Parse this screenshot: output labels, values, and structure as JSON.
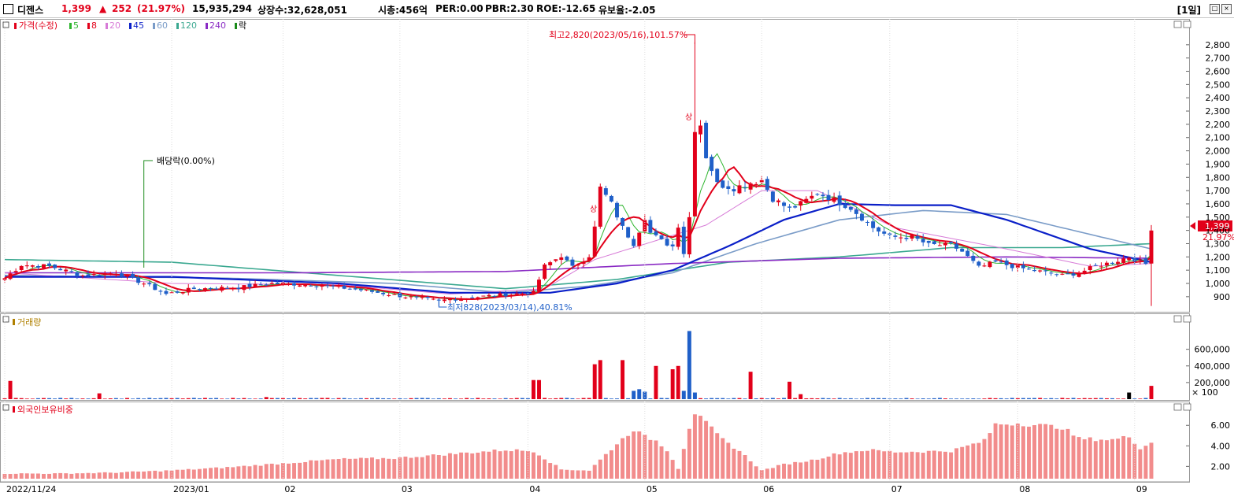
{
  "header": {
    "name": "디젠스",
    "price": "1,399",
    "change_arrow": "▲",
    "change": "252",
    "change_pct": "(21.97%)",
    "volume": "15,935,294",
    "listed_shares": "상장수:32,628,051",
    "market_cap": "시총:456억",
    "per": "PER:0.00",
    "pbr": "PBR:2.30",
    "roe": "ROE:-12.65",
    "float_ratio": "유보율:-2.05",
    "period": "[1일]"
  },
  "legend": {
    "price_label": "가격(수정)",
    "ma": [
      {
        "label": "5",
        "color": "#2db52d"
      },
      {
        "label": "8",
        "color": "#e2001a"
      },
      {
        "label": "20",
        "color": "#d77bd7"
      },
      {
        "label": "45",
        "color": "#0a1fc8"
      },
      {
        "label": "60",
        "color": "#7a9cc8"
      },
      {
        "label": "120",
        "color": "#3aa890"
      },
      {
        "label": "240",
        "color": "#8a2bc4"
      }
    ],
    "ex_label": "락"
  },
  "annotations": {
    "high": "최고2,820(2023/05/16),101.57%",
    "low": "최저828(2023/03/14),40.81%",
    "dividend": "배당락(0.00%)",
    "limit_up_1": "상",
    "limit_up_2": "상",
    "last_price": "1,399",
    "last_pct": "21.97%"
  },
  "panels": {
    "volume_title": "거래량",
    "foreign_title": "외국인보유비중",
    "volume_unit": "× 100"
  },
  "colors": {
    "up": "#e2001a",
    "down": "#1f5fc8",
    "volume_last_dark": "#000000",
    "foreign_bar": "#f28c8c"
  },
  "chart_data": [
    {
      "type": "candlestick",
      "title": "",
      "ylim": [
        810,
        2900
      ],
      "y_ticks": [
        "900",
        "1,000",
        "1,100",
        "1,200",
        "1,300",
        "1,400",
        "1,500",
        "1,600",
        "1,700",
        "1,800",
        "1,900",
        "2,000",
        "2,100",
        "2,200",
        "2,300",
        "2,400",
        "2,500",
        "2,600",
        "2,700",
        "2,800"
      ],
      "x_ticks": [
        "2022/11/24",
        "2023/01",
        "02",
        "03",
        "04",
        "05",
        "06",
        "07",
        "08",
        "09"
      ],
      "x_tick_index": [
        0,
        30,
        50,
        71,
        94,
        115,
        136,
        159,
        182,
        203
      ],
      "n_days": 207,
      "anchors_close": [
        [
          0,
          1040
        ],
        [
          3,
          1140
        ],
        [
          8,
          1130
        ],
        [
          14,
          1060
        ],
        [
          20,
          1080
        ],
        [
          25,
          1000
        ],
        [
          29,
          920
        ],
        [
          34,
          960
        ],
        [
          42,
          970
        ],
        [
          48,
          1000
        ],
        [
          56,
          990
        ],
        [
          64,
          950
        ],
        [
          72,
          900
        ],
        [
          78,
          870
        ],
        [
          80,
          880
        ],
        [
          88,
          910
        ],
        [
          95,
          930
        ],
        [
          97,
          1130
        ],
        [
          100,
          1210
        ],
        [
          102,
          1120
        ],
        [
          105,
          1210
        ],
        [
          106,
          1420
        ],
        [
          107,
          1720
        ],
        [
          109,
          1600
        ],
        [
          111,
          1420
        ],
        [
          113,
          1300
        ],
        [
          115,
          1500
        ],
        [
          116,
          1380
        ],
        [
          118,
          1320
        ],
        [
          120,
          1280
        ],
        [
          121,
          1440
        ],
        [
          122,
          1230
        ],
        [
          123,
          1500
        ],
        [
          124,
          2170
        ],
        [
          125,
          2200
        ],
        [
          126,
          1960
        ],
        [
          127,
          1860
        ],
        [
          128,
          1750
        ],
        [
          131,
          1720
        ],
        [
          134,
          1760
        ],
        [
          136,
          1780
        ],
        [
          138,
          1640
        ],
        [
          141,
          1560
        ],
        [
          143,
          1600
        ],
        [
          146,
          1680
        ],
        [
          148,
          1650
        ],
        [
          152,
          1570
        ],
        [
          156,
          1420
        ],
        [
          159,
          1350
        ],
        [
          163,
          1350
        ],
        [
          166,
          1290
        ],
        [
          170,
          1290
        ],
        [
          172,
          1240
        ],
        [
          175,
          1120
        ],
        [
          178,
          1160
        ],
        [
          182,
          1120
        ],
        [
          186,
          1090
        ],
        [
          190,
          1060
        ],
        [
          193,
          1080
        ],
        [
          196,
          1130
        ],
        [
          199,
          1160
        ],
        [
          202,
          1200
        ],
        [
          205,
          1147
        ],
        [
          206,
          1399
        ]
      ],
      "high": {
        "value": 2820,
        "date": "2023/05/16",
        "pct": 101.57
      },
      "low": {
        "value": 828,
        "date": "2023/03/14",
        "pct": 40.81
      },
      "last_close": 1399,
      "ma_anchors": {
        "20": [
          [
            0,
            1080
          ],
          [
            30,
            1000
          ],
          [
            60,
            990
          ],
          [
            80,
            920
          ],
          [
            97,
            960
          ],
          [
            106,
            1180
          ],
          [
            116,
            1310
          ],
          [
            126,
            1440
          ],
          [
            136,
            1700
          ],
          [
            146,
            1700
          ],
          [
            160,
            1420
          ],
          [
            180,
            1260
          ],
          [
            195,
            1130
          ],
          [
            206,
            1150
          ]
        ],
        "45": [
          [
            0,
            1050
          ],
          [
            30,
            1050
          ],
          [
            60,
            1000
          ],
          [
            80,
            930
          ],
          [
            98,
            930
          ],
          [
            110,
            1000
          ],
          [
            120,
            1100
          ],
          [
            130,
            1280
          ],
          [
            140,
            1480
          ],
          [
            150,
            1600
          ],
          [
            160,
            1590
          ],
          [
            170,
            1590
          ],
          [
            180,
            1480
          ],
          [
            195,
            1260
          ],
          [
            206,
            1160
          ]
        ],
        "60": [
          [
            0,
            1060
          ],
          [
            40,
            1040
          ],
          [
            70,
            1000
          ],
          [
            90,
            930
          ],
          [
            105,
            980
          ],
          [
            120,
            1080
          ],
          [
            135,
            1300
          ],
          [
            150,
            1480
          ],
          [
            165,
            1550
          ],
          [
            180,
            1520
          ],
          [
            195,
            1370
          ],
          [
            206,
            1260
          ]
        ],
        "120": [
          [
            0,
            1180
          ],
          [
            30,
            1160
          ],
          [
            60,
            1060
          ],
          [
            90,
            960
          ],
          [
            110,
            1030
          ],
          [
            130,
            1160
          ],
          [
            150,
            1200
          ],
          [
            170,
            1270
          ],
          [
            190,
            1270
          ],
          [
            206,
            1300
          ]
        ],
        "240": [
          [
            0,
            1080
          ],
          [
            50,
            1080
          ],
          [
            90,
            1090
          ],
          [
            120,
            1150
          ],
          [
            150,
            1190
          ],
          [
            180,
            1200
          ],
          [
            206,
            1190
          ]
        ]
      },
      "volume": {
        "ylim": [
          0,
          900000
        ],
        "y_ticks": [
          "200,000",
          "400,000",
          "600,000"
        ],
        "spikes": [
          [
            1,
            220000,
            "up"
          ],
          [
            17,
            70000,
            "up"
          ],
          [
            47,
            25000,
            "up"
          ],
          [
            95,
            230000,
            "up"
          ],
          [
            96,
            230000,
            "up"
          ],
          [
            106,
            420000,
            "up"
          ],
          [
            107,
            470000,
            "up"
          ],
          [
            111,
            470000,
            "up"
          ],
          [
            113,
            100000,
            "down"
          ],
          [
            114,
            120000,
            "down"
          ],
          [
            115,
            90000,
            "down"
          ],
          [
            117,
            400000,
            "up"
          ],
          [
            120,
            360000,
            "up"
          ],
          [
            121,
            400000,
            "up"
          ],
          [
            122,
            100000,
            "down"
          ],
          [
            123,
            820000,
            "down"
          ],
          [
            124,
            80000,
            "down"
          ],
          [
            134,
            330000,
            "up"
          ],
          [
            141,
            210000,
            "up"
          ],
          [
            143,
            60000,
            "up"
          ],
          [
            202,
            80000,
            "down"
          ],
          [
            206,
            160000,
            "up"
          ]
        ]
      },
      "foreign_ratio": {
        "ylim": [
          0.8,
          7.4
        ],
        "y_ticks": [
          "2.00",
          "4.00",
          "6.00"
        ],
        "anchors": [
          [
            0,
            1.3
          ],
          [
            10,
            1.3
          ],
          [
            20,
            1.4
          ],
          [
            30,
            1.6
          ],
          [
            40,
            1.9
          ],
          [
            50,
            2.3
          ],
          [
            60,
            2.7
          ],
          [
            70,
            2.8
          ],
          [
            80,
            3.2
          ],
          [
            90,
            3.6
          ],
          [
            95,
            3.5
          ],
          [
            100,
            1.7
          ],
          [
            105,
            1.6
          ],
          [
            110,
            4.2
          ],
          [
            113,
            5.6
          ],
          [
            115,
            4.9
          ],
          [
            117,
            4.5
          ],
          [
            119,
            3.6
          ],
          [
            121,
            1.8
          ],
          [
            123,
            5.8
          ],
          [
            124,
            7.2
          ],
          [
            126,
            6.2
          ],
          [
            129,
            4.6
          ],
          [
            132,
            3.5
          ],
          [
            136,
            1.6
          ],
          [
            140,
            2.2
          ],
          [
            145,
            2.6
          ],
          [
            150,
            3.3
          ],
          [
            155,
            3.6
          ],
          [
            160,
            3.4
          ],
          [
            170,
            3.5
          ],
          [
            176,
            4.5
          ],
          [
            178,
            6.1
          ],
          [
            182,
            6.2
          ],
          [
            186,
            6.0
          ],
          [
            190,
            5.8
          ],
          [
            193,
            4.7
          ],
          [
            199,
            4.6
          ],
          [
            202,
            4.9
          ],
          [
            204,
            3.8
          ],
          [
            206,
            4.3
          ]
        ]
      }
    }
  ]
}
